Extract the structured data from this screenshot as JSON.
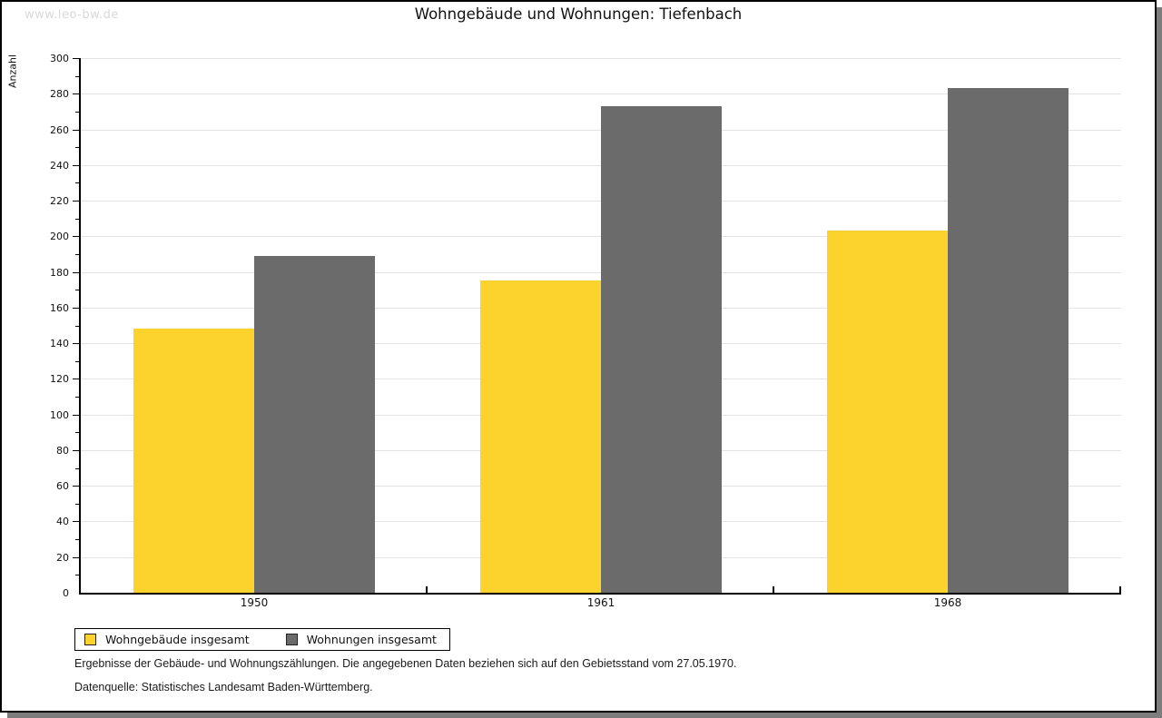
{
  "watermark": "www.leo-bw.de",
  "title": "Wohngebäude und Wohnungen: Tiefenbach",
  "footnotes": {
    "line1": "Ergebnisse der Gebäude- und Wohnungszählungen. Die angegebenen Daten beziehen sich auf den Gebietsstand vom 27.05.1970.",
    "line2": "Datenquelle: Statistisches Landesamt Baden-Württemberg."
  },
  "chart_data": {
    "type": "bar",
    "title": "Wohngebäude und Wohnungen: Tiefenbach",
    "ylabel": "Anzahl",
    "xlabel": "",
    "categories": [
      "1950",
      "1961",
      "1968"
    ],
    "series": [
      {
        "name": "Wohngebäude insgesamt",
        "color": "#FCD32D",
        "values": [
          148,
          175,
          203
        ]
      },
      {
        "name": "Wohnungen insgesamt",
        "color": "#6B6B6B",
        "values": [
          189,
          273,
          283
        ]
      }
    ],
    "ylim": [
      0,
      300
    ],
    "ytick_major": 20,
    "ytick_minor": 10,
    "grid": true,
    "gridline_color": "#E3E3E3",
    "legend_position": "bottom-left"
  },
  "colors": {
    "shadow": "#7D7D7D",
    "axis": "#000000",
    "watermark": "#D9D9D9"
  }
}
